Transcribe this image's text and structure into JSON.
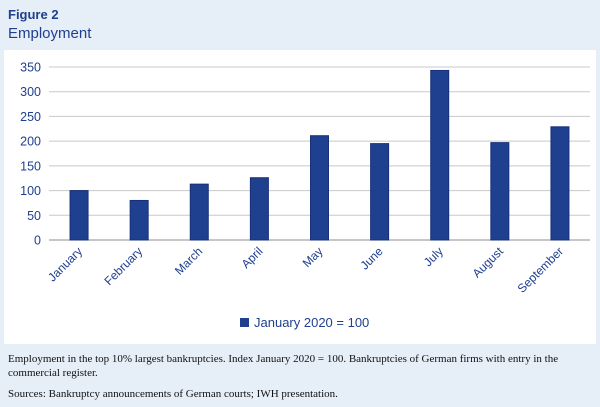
{
  "figure": {
    "label": "Figure 2",
    "title": "Employment"
  },
  "colors": {
    "bar": "#1f3f8f",
    "bar_stroke": "#16307a",
    "grid": "#c8c8c8",
    "axis": "#8c8c8c",
    "text": "#1f3f8f",
    "background": "#e6eef7"
  },
  "chart_data": {
    "type": "bar",
    "categories": [
      "January",
      "February",
      "March",
      "April",
      "May",
      "June",
      "July",
      "August",
      "September"
    ],
    "series": [
      {
        "name": "January 2020 = 100",
        "values": [
          100,
          80,
          113,
          126,
          211,
          195,
          343,
          197,
          229
        ]
      }
    ],
    "yticks": [
      0,
      50,
      100,
      150,
      200,
      250,
      300,
      350
    ],
    "ylim": [
      0,
      350
    ],
    "xlabel": "",
    "ylabel": "",
    "grid": true,
    "legend_position": "bottom"
  },
  "note": "Employment in the top 10% largest bankruptcies. Index January 2020 = 100. Bankruptcies of German firms with entry in the commercial register.",
  "source": "Sources: Bankruptcy announcements of German courts; IWH presentation."
}
